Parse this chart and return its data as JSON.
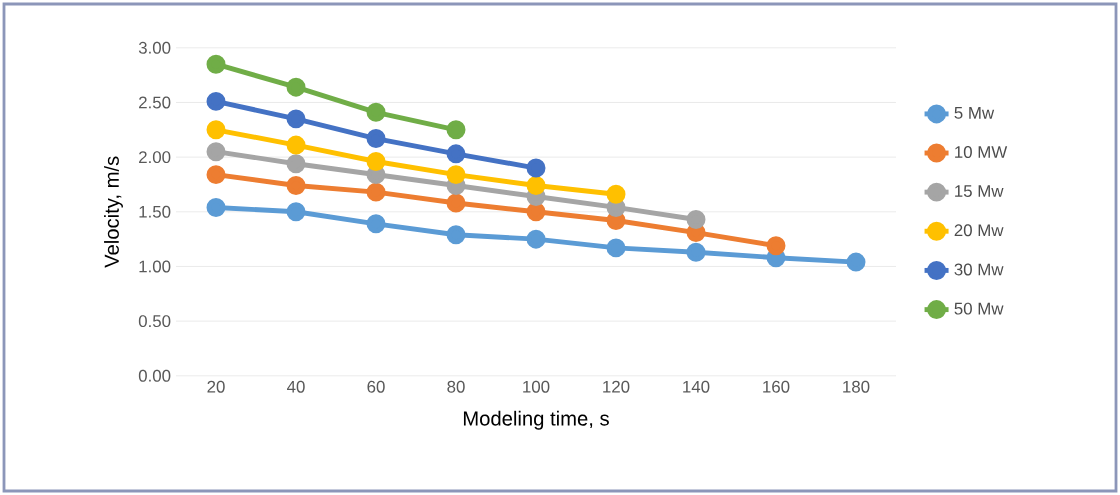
{
  "chart_data": {
    "type": "line",
    "xlabel": "Modeling time,   s",
    "ylabel": "Velocity,   m/s",
    "categories": [
      "20",
      "40",
      "60",
      "80",
      "100",
      "120",
      "140",
      "160",
      "180"
    ],
    "series": [
      {
        "name": "5 Mw",
        "color": "#5b9bd5",
        "values": [
          1.54,
          1.5,
          1.39,
          1.29,
          1.25,
          1.17,
          1.13,
          1.08,
          1.04
        ]
      },
      {
        "name": "10 MW",
        "color": "#ed7d31",
        "values": [
          1.84,
          1.74,
          1.68,
          1.58,
          1.5,
          1.42,
          1.31,
          1.19,
          null
        ]
      },
      {
        "name": "15 Mw",
        "color": "#a5a5a5",
        "values": [
          2.05,
          1.94,
          1.84,
          1.74,
          1.64,
          1.54,
          1.43,
          null,
          null
        ]
      },
      {
        "name": "20 Mw",
        "color": "#ffc000",
        "values": [
          2.25,
          2.11,
          1.96,
          1.84,
          1.74,
          1.66,
          null,
          null,
          null
        ]
      },
      {
        "name": "30 Mw",
        "color": "#4472c4",
        "values": [
          2.51,
          2.35,
          2.17,
          2.03,
          1.9,
          null,
          null,
          null,
          null
        ]
      },
      {
        "name": "50 Mw",
        "color": "#70ad47",
        "values": [
          2.85,
          2.64,
          2.41,
          2.25,
          null,
          null,
          null,
          null,
          null
        ]
      }
    ],
    "ylim": [
      0,
      3
    ],
    "yticks": [
      {
        "value": 0,
        "label": "0.00"
      },
      {
        "value": 0.5,
        "label": "0.50"
      },
      {
        "value": 1,
        "label": "1.00"
      },
      {
        "value": 1.5,
        "label": "1.50"
      },
      {
        "value": 2,
        "label": "2.00"
      },
      {
        "value": 2.5,
        "label": "2.50"
      },
      {
        "value": 3,
        "label": "3.00"
      }
    ],
    "grid": "y",
    "legend": "right",
    "marker": "circle",
    "line_style": "solid"
  }
}
